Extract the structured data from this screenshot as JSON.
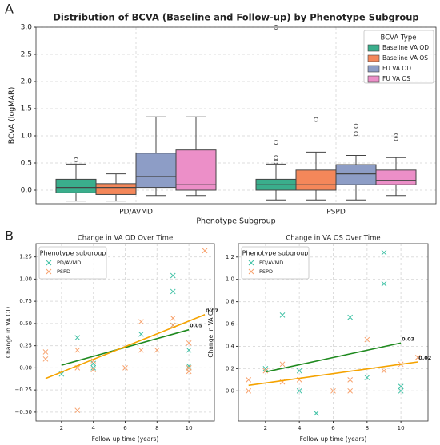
{
  "panel_labels": [
    "A",
    "B"
  ],
  "chart_data": [
    {
      "type": "box",
      "title": "Distribution of BCVA (Baseline and Follow-up) by Phenotype Subgroup",
      "x_label": "Phenotype Subgroup",
      "y_label": "BCVA (logMAR)",
      "categories": [
        "PD/AVMD",
        "PSPD"
      ],
      "ylim": [
        -0.25,
        3.0
      ],
      "yticks": [
        {
          "value": 0,
          "label": "0.0"
        },
        0.5,
        {
          "value": 1,
          "label": "1.0"
        },
        1.5,
        {
          "value": 2,
          "label": "2.0"
        },
        2.5,
        {
          "value": 3,
          "label": "3.0"
        }
      ],
      "grid": true,
      "legend_title": "BCVA Type",
      "legend_position": "upper-right",
      "series": [
        {
          "name": "Baseline VA OD",
          "color": "#3aae8c",
          "boxes": [
            {
              "whislo": -0.2,
              "q1": -0.05,
              "med": 0.05,
              "q3": 0.2,
              "whishi": 0.48,
              "fliers": [
                0.56
              ]
            },
            {
              "whislo": -0.18,
              "q1": 0.0,
              "med": 0.1,
              "q3": 0.2,
              "whishi": 0.48,
              "fliers": [
                0.52,
                0.6,
                0.88,
                3.0
              ]
            }
          ]
        },
        {
          "name": "Baseline VA OS",
          "color": "#f4875a",
          "boxes": [
            {
              "whislo": -0.2,
              "q1": -0.08,
              "med": 0.05,
              "q3": 0.12,
              "whishi": 0.3,
              "fliers": []
            },
            {
              "whislo": -0.18,
              "q1": 0.0,
              "med": 0.1,
              "q3": 0.37,
              "whishi": 0.7,
              "fliers": [
                1.3
              ]
            }
          ]
        },
        {
          "name": "FU VA OD",
          "color": "#8d9dc6",
          "boxes": [
            {
              "whislo": -0.1,
              "q1": 0.05,
              "med": 0.25,
              "q3": 0.68,
              "whishi": 1.35,
              "fliers": []
            },
            {
              "whislo": -0.18,
              "q1": 0.1,
              "med": 0.3,
              "q3": 0.47,
              "whishi": 0.64,
              "fliers": [
                1.04,
                1.18
              ]
            }
          ]
        },
        {
          "name": "FU VA OS",
          "color": "#ec8fc8",
          "boxes": [
            {
              "whislo": -0.1,
              "q1": 0.0,
              "med": 0.1,
              "q3": 0.74,
              "whishi": 1.35,
              "fliers": []
            },
            {
              "whislo": -0.1,
              "q1": 0.1,
              "med": 0.18,
              "q3": 0.37,
              "whishi": 0.6,
              "fliers": [
                0.95,
                1.0
              ]
            }
          ]
        }
      ]
    },
    {
      "type": "scatter",
      "title": "Change in VA OD Over Time",
      "x_label": "Follow up time (years)",
      "y_label": "Change in VA OD",
      "xlim": [
        0.4,
        11.6
      ],
      "xticks": [
        2,
        4,
        6,
        8,
        10
      ],
      "ylim": [
        -0.6,
        1.4
      ],
      "yticks": [
        {
          "value": -0.5,
          "label": "−0.50"
        },
        {
          "value": -0.25,
          "label": "−0.25"
        },
        {
          "value": 0,
          "label": "0.00"
        },
        {
          "value": 0.25,
          "label": "0.25"
        },
        {
          "value": 0.5,
          "label": "0.50"
        },
        {
          "value": 0.75,
          "label": "0.75"
        },
        {
          "value": 1,
          "label": "1.00"
        },
        {
          "value": 1.25,
          "label": "1.25"
        }
      ],
      "grid": true,
      "legend_title": "Phenotype subgroup",
      "legend_position": "upper-left",
      "series": [
        {
          "name": "PD/AVMD",
          "color": "#3fc1a5",
          "x": [
            2,
            3,
            4,
            4,
            7,
            9,
            9,
            9,
            10,
            10,
            10
          ],
          "values": [
            -0.07,
            0.34,
            0.05,
            0.0,
            0.38,
            1.04,
            0.86,
            0.48,
            0.2,
            0.02,
            0.0
          ]
        },
        {
          "name": "PSPD",
          "color": "#f7a16c",
          "x": [
            1,
            1,
            3,
            3,
            3,
            4,
            4,
            6,
            7,
            7,
            8,
            9,
            9,
            10,
            10,
            10,
            11
          ],
          "values": [
            0.18,
            0.1,
            0.2,
            0.0,
            -0.48,
            0.08,
            -0.02,
            0.0,
            0.52,
            0.2,
            0.2,
            0.56,
            0.48,
            0.28,
            0.0,
            -0.04,
            1.32
          ]
        }
      ],
      "trend_lines": [
        {
          "color": "#1f8a1f",
          "x": [
            2,
            10
          ],
          "values": [
            0.03,
            0.43
          ],
          "annotation": "0.05"
        },
        {
          "color": "#f5a300",
          "x": [
            1,
            11
          ],
          "values": [
            -0.12,
            0.6
          ],
          "annotation": "0.07"
        }
      ]
    },
    {
      "type": "scatter",
      "title": "Change in VA OS Over Time",
      "x_label": "Follow up time (years)",
      "y_label": "Change in VA OS",
      "xlim": [
        0.4,
        11.6
      ],
      "xticks": [
        2,
        4,
        6,
        8,
        10
      ],
      "ylim": [
        -0.27,
        1.32
      ],
      "yticks": [
        {
          "value": 0,
          "label": "0.0"
        },
        0.2,
        0.4,
        0.6,
        0.8,
        {
          "value": 1,
          "label": "1.0"
        },
        1.2
      ],
      "grid": true,
      "legend_title": "Phenotype subgroup",
      "legend_position": "upper-left",
      "series": [
        {
          "name": "PD/AVMD",
          "color": "#3fc1a5",
          "x": [
            2,
            3,
            4,
            4,
            5,
            7,
            8,
            9,
            9,
            10,
            10
          ],
          "values": [
            0.2,
            0.68,
            0.18,
            0.0,
            -0.2,
            0.66,
            0.12,
            1.24,
            0.96,
            0.04,
            0.0
          ]
        },
        {
          "name": "PSPD",
          "color": "#f7a16c",
          "x": [
            1,
            1,
            2,
            3,
            3,
            4,
            6,
            7,
            7,
            8,
            9,
            10,
            11
          ],
          "values": [
            0.1,
            0.0,
            0.18,
            0.24,
            0.08,
            0.1,
            0.0,
            0.1,
            0.0,
            0.46,
            0.18,
            0.24,
            0.3
          ]
        }
      ],
      "trend_lines": [
        {
          "color": "#1f8a1f",
          "x": [
            2,
            10
          ],
          "values": [
            0.17,
            0.43
          ],
          "annotation": "0.03"
        },
        {
          "color": "#f5a300",
          "x": [
            1,
            11
          ],
          "values": [
            0.05,
            0.26
          ],
          "annotation": "0.02"
        }
      ]
    }
  ]
}
